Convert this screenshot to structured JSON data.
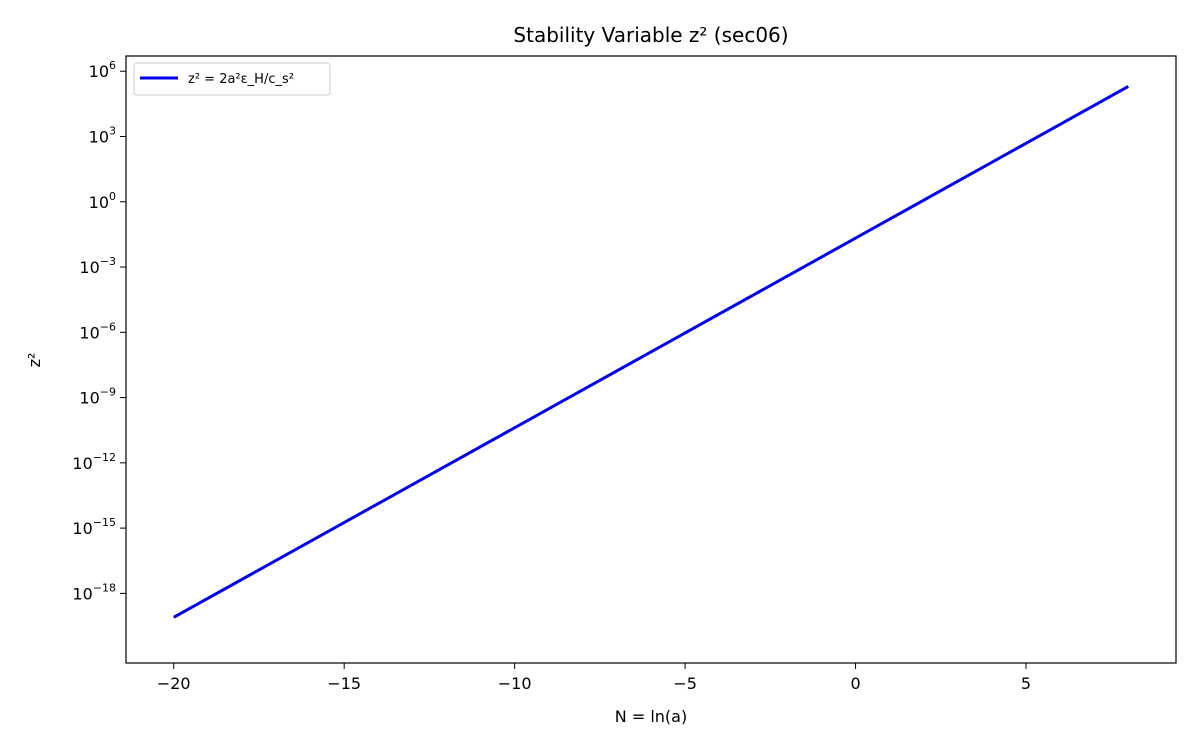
{
  "chart_data": {
    "type": "line",
    "title": "Stability Variable z² (sec06)",
    "xlabel": "N = ln(a)",
    "ylabel": "z²",
    "xlim": [
      -21.4,
      9.4
    ],
    "ylim": [
      -21.2,
      6.7
    ],
    "y_scale": "log",
    "x_ticks": [
      -20,
      -15,
      -10,
      -5,
      0,
      5
    ],
    "x_tick_labels": [
      "−20",
      "−15",
      "−10",
      "−5",
      "0",
      "5"
    ],
    "y_tick_exponents": [
      -18,
      -15,
      -12,
      -9,
      -6,
      -3,
      0,
      3,
      6
    ],
    "y_tick_labels": [
      "10",
      "10",
      "10",
      "10",
      "10",
      "10",
      "10",
      "10",
      "10"
    ],
    "y_tick_superscripts": [
      "−18",
      "−15",
      "−12",
      "−9",
      "−6",
      "−3",
      "0",
      "3",
      "6"
    ],
    "grid": false,
    "legend_position": "top-left",
    "series": [
      {
        "name": "z² = 2a²ε_H/c_s²",
        "color": "#0000ee",
        "x": [
          -20,
          8
        ],
        "y_log10": [
          -19.1,
          5.3
        ]
      }
    ]
  }
}
